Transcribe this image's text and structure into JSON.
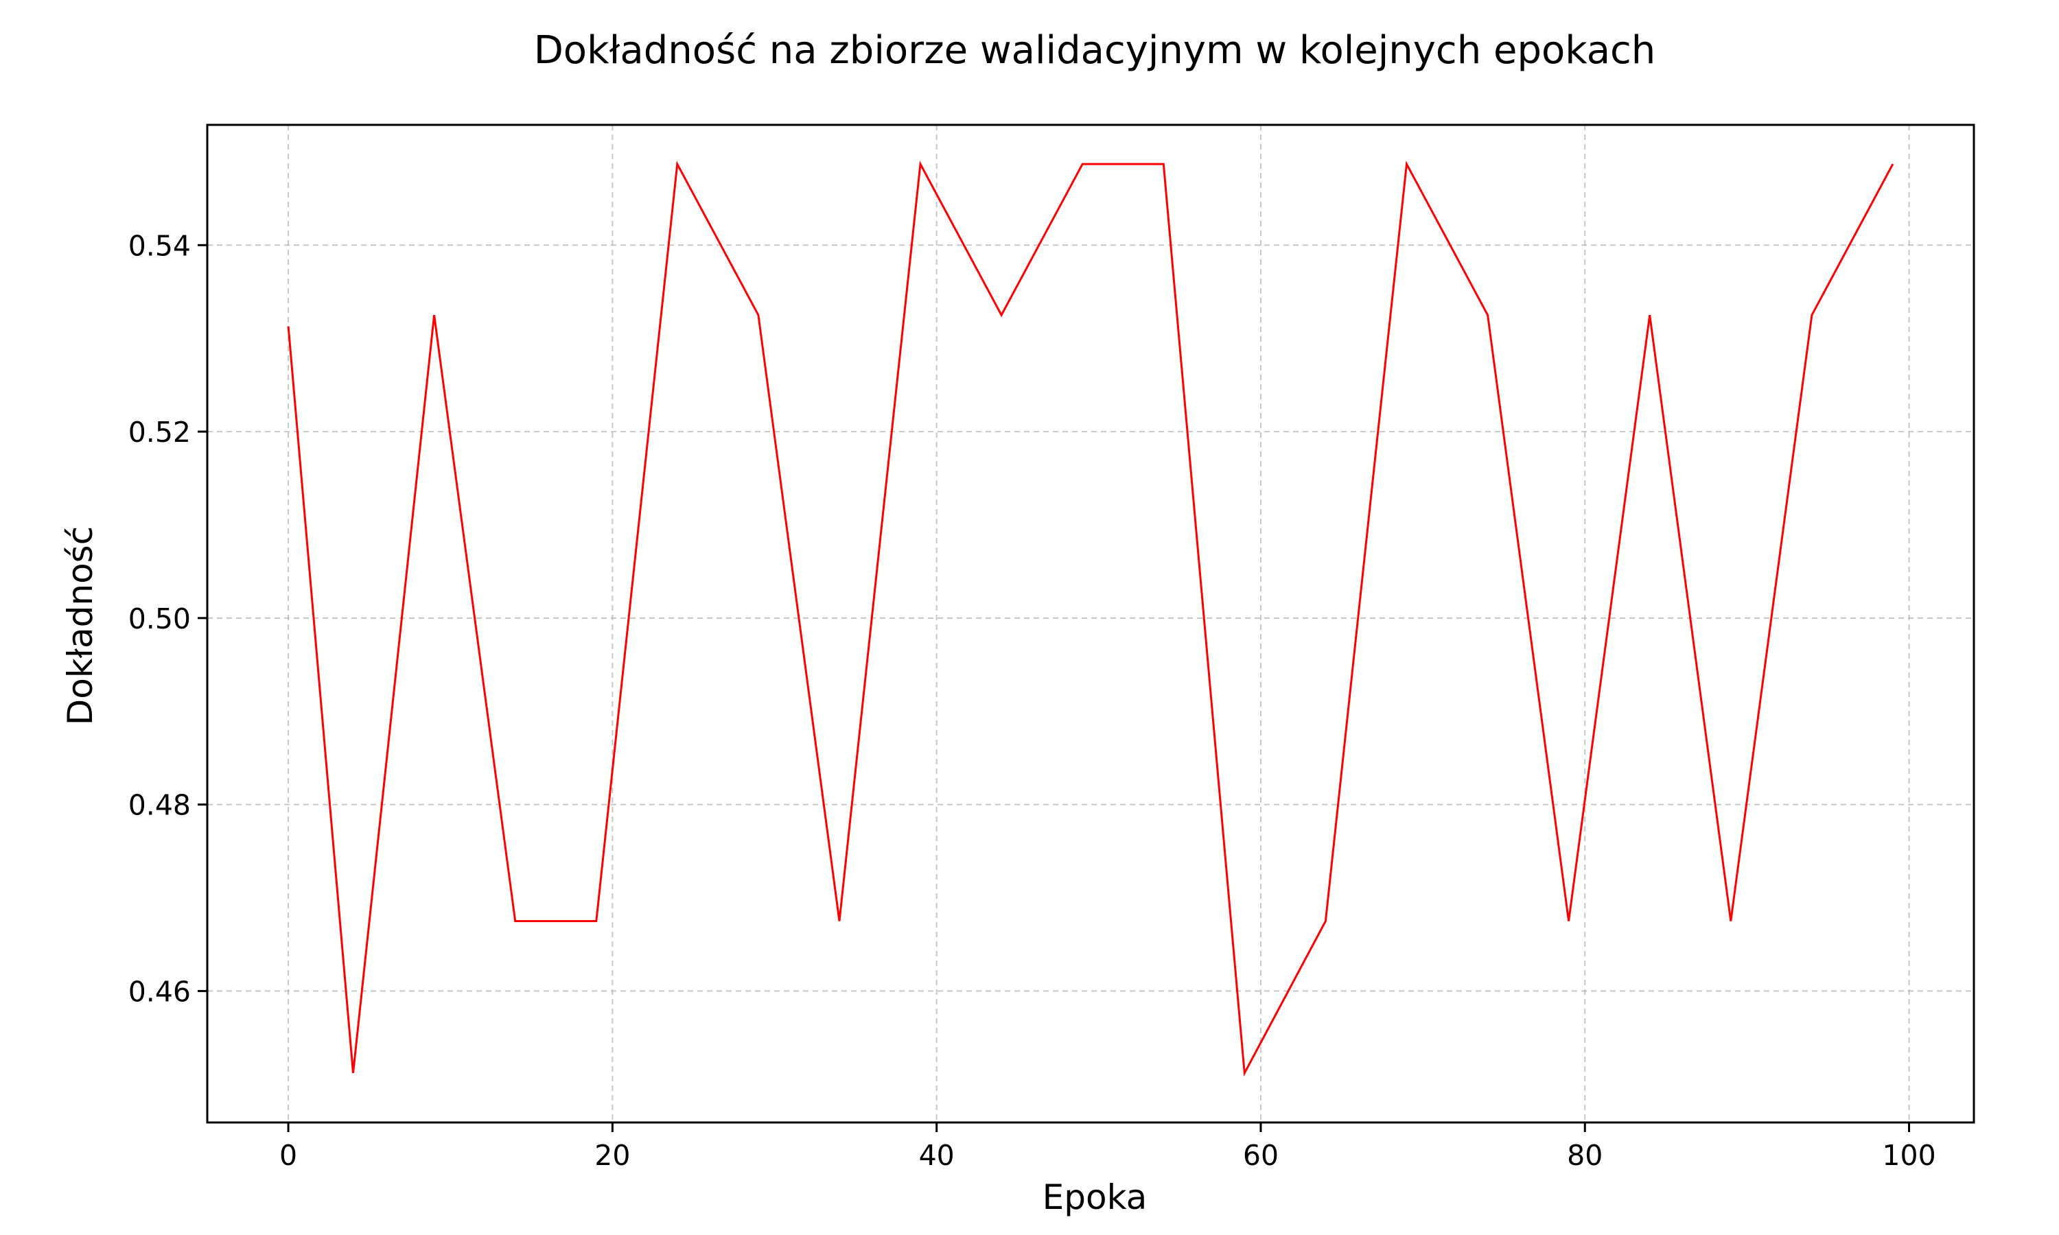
{
  "chart_data": {
    "type": "line",
    "title": "Dokładność na zbiorze walidacyjnym w kolejnych epokach",
    "xlabel": "Epoka",
    "ylabel": "Dokładność",
    "xlim": [
      -5,
      104
    ],
    "ylim": [
      0.4459,
      0.5529
    ],
    "xticks": [
      0,
      20,
      40,
      60,
      80,
      100
    ],
    "xtick_labels": [
      "0",
      "20",
      "40",
      "60",
      "80",
      "100"
    ],
    "yticks": [
      0.46,
      0.48,
      0.5,
      0.52,
      0.54
    ],
    "ytick_labels": [
      "0.46",
      "0.48",
      "0.50",
      "0.52",
      "0.54"
    ],
    "grid": true,
    "series": [
      {
        "color": "#ff0000",
        "x": [
          0,
          4,
          9,
          14,
          19,
          24,
          29,
          34,
          39,
          44,
          49,
          54,
          59,
          64,
          69,
          74,
          79,
          84,
          89,
          94,
          99
        ],
        "y": [
          0.5313,
          0.4512,
          0.5325,
          0.4675,
          0.4675,
          0.5487,
          0.5325,
          0.4675,
          0.5487,
          0.5325,
          0.5487,
          0.5487,
          0.4512,
          0.4675,
          0.5487,
          0.5325,
          0.4675,
          0.5325,
          0.4675,
          0.5325,
          0.5487
        ]
      }
    ]
  }
}
